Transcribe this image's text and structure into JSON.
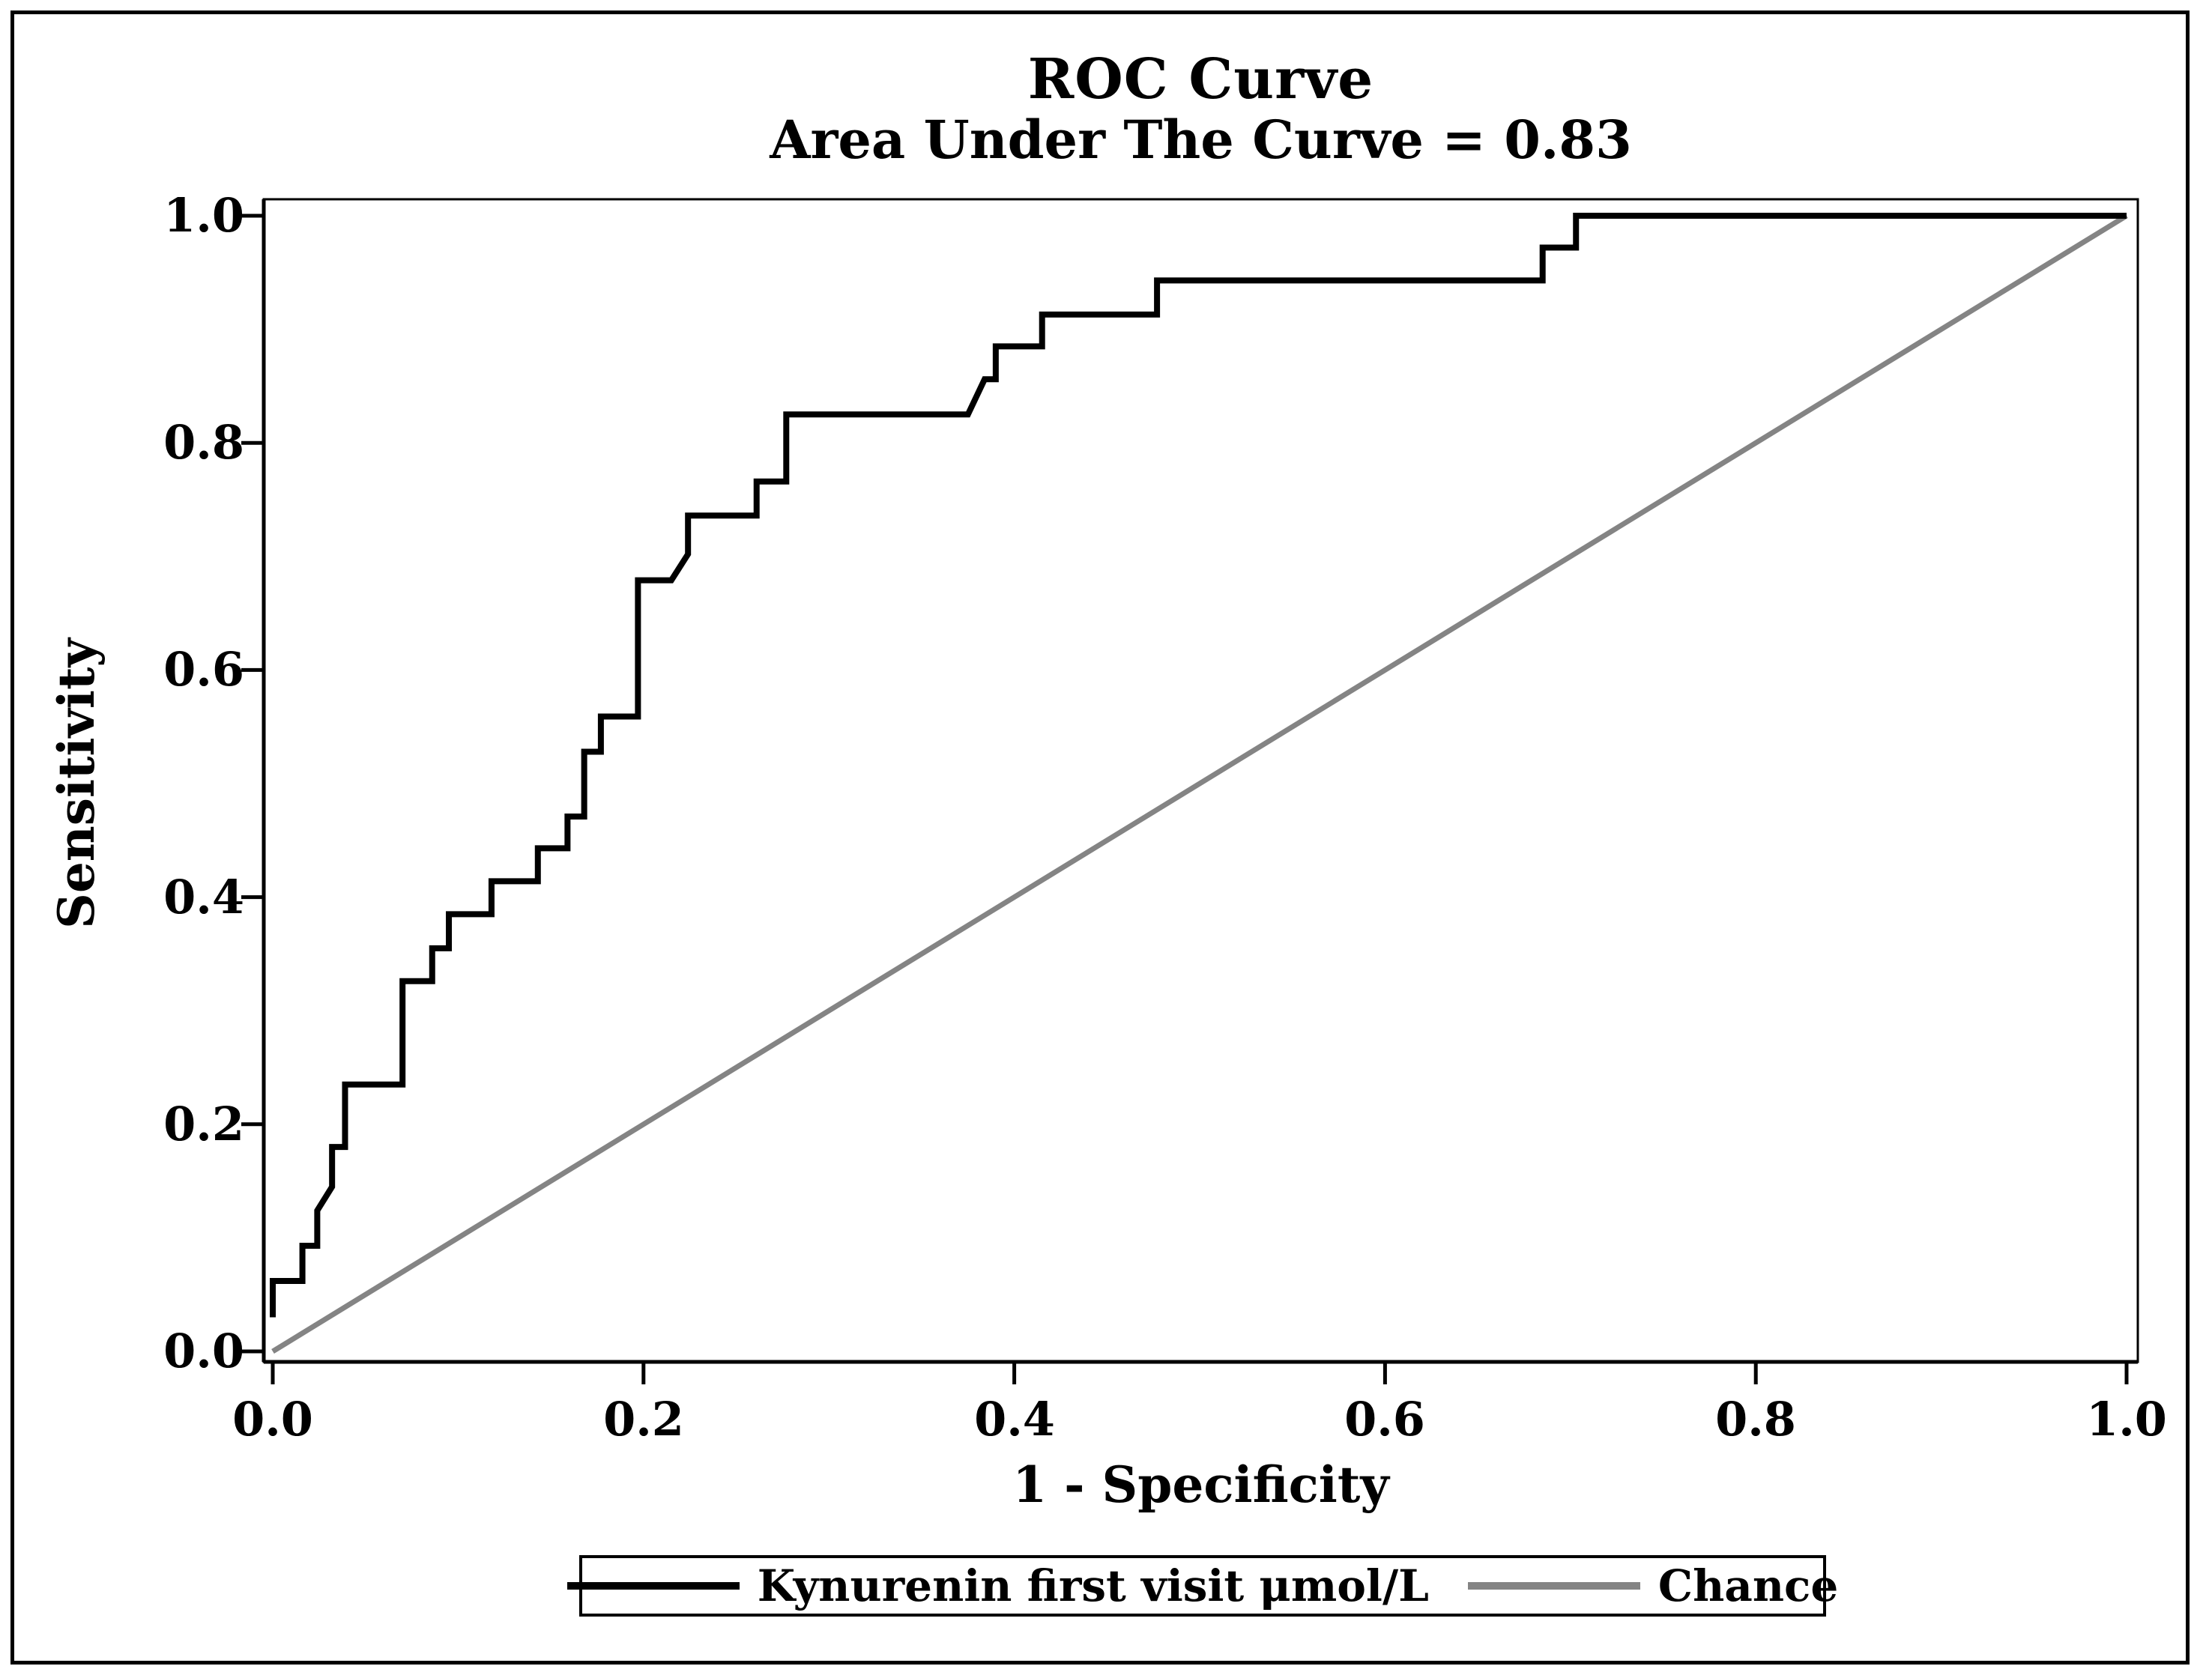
{
  "figure": {
    "title": "ROC Curve",
    "subtitle": "Area Under The Curve = 0.83"
  },
  "axes": {
    "x": {
      "label": "1 - Specificity",
      "ticks": [
        "0.0",
        "0.2",
        "0.4",
        "0.6",
        "0.8",
        "1.0"
      ]
    },
    "y": {
      "label": "Sensitivity",
      "ticks": [
        "0.0",
        "0.2",
        "0.4",
        "0.6",
        "0.8",
        "1.0"
      ]
    }
  },
  "legend": {
    "items": [
      {
        "label": "Kynurenin first visit μmol/L",
        "color": "#000000"
      },
      {
        "label": "Chance",
        "color": "#848484"
      }
    ]
  },
  "colors": {
    "curve": "#000000",
    "chance": "#848484",
    "frame": "#000000",
    "background": "#ffffff"
  },
  "chart_data": {
    "type": "line",
    "title": "ROC Curve",
    "subtitle": "Area Under The Curve = 0.83",
    "auc": 0.83,
    "xlabel": "1 - Specificity",
    "ylabel": "Sensitivity",
    "xlim": [
      0,
      1
    ],
    "ylim": [
      0,
      1
    ],
    "x_ticks": [
      0.0,
      0.2,
      0.4,
      0.6,
      0.8,
      1.0
    ],
    "y_ticks": [
      0.0,
      0.2,
      0.4,
      0.6,
      0.8,
      1.0
    ],
    "grid": false,
    "legend_position": "bottom",
    "series": [
      {
        "name": "Kynurenin first visit μmol/L",
        "color": "#000000",
        "stroke_width": 8,
        "points": [
          [
            0.0,
            0.03
          ],
          [
            0.0,
            0.062
          ],
          [
            0.016,
            0.062
          ],
          [
            0.016,
            0.093
          ],
          [
            0.024,
            0.093
          ],
          [
            0.024,
            0.124
          ],
          [
            0.032,
            0.145
          ],
          [
            0.032,
            0.18
          ],
          [
            0.039,
            0.18
          ],
          [
            0.039,
            0.235
          ],
          [
            0.07,
            0.235
          ],
          [
            0.07,
            0.326
          ],
          [
            0.086,
            0.326
          ],
          [
            0.086,
            0.355
          ],
          [
            0.095,
            0.355
          ],
          [
            0.095,
            0.385
          ],
          [
            0.118,
            0.385
          ],
          [
            0.118,
            0.414
          ],
          [
            0.143,
            0.414
          ],
          [
            0.143,
            0.443
          ],
          [
            0.159,
            0.443
          ],
          [
            0.159,
            0.471
          ],
          [
            0.168,
            0.471
          ],
          [
            0.168,
            0.528
          ],
          [
            0.177,
            0.528
          ],
          [
            0.177,
            0.559
          ],
          [
            0.197,
            0.559
          ],
          [
            0.197,
            0.679
          ],
          [
            0.215,
            0.679
          ],
          [
            0.224,
            0.702
          ],
          [
            0.224,
            0.736
          ],
          [
            0.261,
            0.736
          ],
          [
            0.261,
            0.766
          ],
          [
            0.277,
            0.766
          ],
          [
            0.277,
            0.825
          ],
          [
            0.375,
            0.825
          ],
          [
            0.384,
            0.856
          ],
          [
            0.39,
            0.856
          ],
          [
            0.39,
            0.885
          ],
          [
            0.415,
            0.885
          ],
          [
            0.415,
            0.913
          ],
          [
            0.477,
            0.913
          ],
          [
            0.477,
            0.943
          ],
          [
            0.685,
            0.943
          ],
          [
            0.685,
            0.972
          ],
          [
            0.703,
            0.972
          ],
          [
            0.703,
            1.0
          ],
          [
            1.0,
            1.0
          ]
        ]
      },
      {
        "name": "Chance",
        "color": "#848484",
        "stroke_width": 7,
        "points": [
          [
            0,
            0
          ],
          [
            1,
            1
          ]
        ]
      }
    ]
  }
}
